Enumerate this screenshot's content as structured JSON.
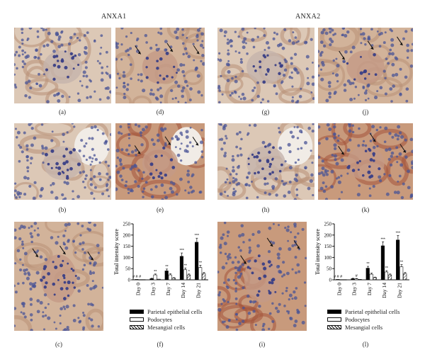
{
  "titles": {
    "left": "ANXA1",
    "right": "ANXA2"
  },
  "panel_labels": {
    "a": "(a)",
    "b": "(b)",
    "c": "(c)",
    "d": "(d)",
    "e": "(e)",
    "f": "(f)",
    "g": "(g)",
    "h": "(h)",
    "i": "(i)",
    "j": "(j)",
    "k": "(k)",
    "l": "(l)"
  },
  "chart_data": [
    {
      "type": "bar",
      "panel": "(f)",
      "categories": [
        "Day 0",
        "Day 3",
        "Day 7",
        "Day 14",
        "Day 21"
      ],
      "ylabel": "Total intensity score",
      "ylim": [
        0,
        250
      ],
      "yticks": [
        "0",
        "50",
        "100",
        "150",
        "200",
        "250"
      ],
      "series": [
        {
          "name": "Parietal epithelial cells",
          "values": [
            2,
            5,
            40,
            105,
            168
          ],
          "errors": [
            1,
            2,
            8,
            15,
            18
          ],
          "annot": [
            "# # #",
            "",
            "**",
            "***",
            "***"
          ]
        },
        {
          "name": "Podocytes",
          "values": [
            1,
            22,
            22,
            45,
            55
          ],
          "errors": [
            1,
            4,
            5,
            8,
            10
          ],
          "annot": [
            "",
            "**",
            "",
            "**",
            "**"
          ]
        },
        {
          "name": "Mesangial cells",
          "values": [
            1,
            3,
            8,
            22,
            28
          ],
          "errors": [
            1,
            1,
            2,
            4,
            5
          ],
          "annot": [
            "",
            "",
            "",
            "*",
            ""
          ]
        }
      ],
      "legend": [
        "Parietal epithelial cells",
        "Podocytes",
        "Mesangial cells"
      ]
    },
    {
      "type": "bar",
      "panel": "(l)",
      "categories": [
        "Day 0",
        "Day 3",
        "Day 7",
        "Day 14",
        "Day 21"
      ],
      "ylabel": "Total intensity score",
      "ylim": [
        0,
        250
      ],
      "yticks": [
        "0",
        "50",
        "100",
        "150",
        "200",
        "250"
      ],
      "series": [
        {
          "name": "Parietal epithelial cells",
          "values": [
            2,
            5,
            52,
            152,
            178
          ],
          "errors": [
            1,
            2,
            8,
            18,
            20
          ],
          "annot": [
            "# # #",
            "",
            "**",
            "***",
            "***"
          ]
        },
        {
          "name": "Podocytes",
          "values": [
            1,
            4,
            25,
            35,
            58
          ],
          "errors": [
            1,
            2,
            5,
            6,
            10
          ],
          "annot": [
            "",
            "#",
            "",
            "**",
            "**"
          ]
        },
        {
          "name": "Mesangial cells",
          "values": [
            1,
            2,
            10,
            22,
            28
          ],
          "errors": [
            1,
            1,
            2,
            4,
            5
          ],
          "annot": [
            "",
            "",
            "",
            "",
            ""
          ]
        }
      ],
      "legend": [
        "Parietal epithelial cells",
        "Podocytes",
        "Mesangial cells"
      ]
    }
  ]
}
